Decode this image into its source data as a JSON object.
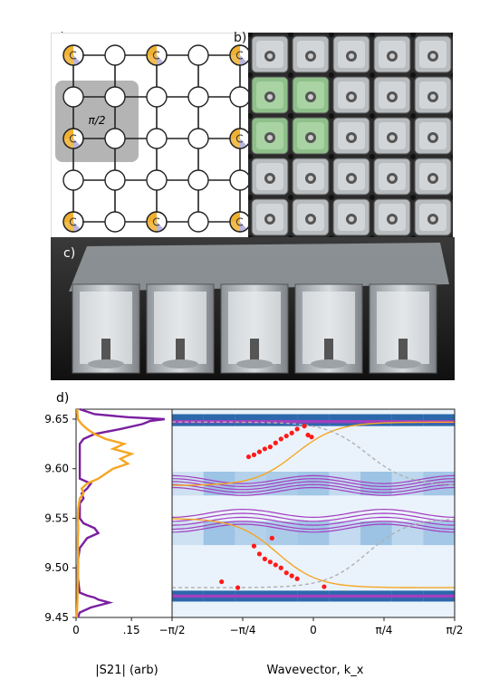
{
  "panels": {
    "a_label": "a)",
    "b_label": "b)",
    "c_label": "c)",
    "d_label": "d)"
  },
  "lattice": {
    "gauge_label": "π/2",
    "rows": 5,
    "cols": 5,
    "shaded_block": {
      "row_start": 1,
      "row_end": 2,
      "col_start": 0,
      "col_end": 1
    },
    "source_sites": [
      [
        0,
        0
      ],
      [
        0,
        2
      ],
      [
        0,
        4
      ],
      [
        2,
        0
      ],
      [
        2,
        4
      ],
      [
        4,
        0
      ],
      [
        4,
        2
      ],
      [
        4,
        4
      ]
    ],
    "colors": {
      "gold": "#f0b030",
      "lavender": "#b9b6e0",
      "shade": "#9b9b9b"
    }
  },
  "chart_data": [
    {
      "type": "line",
      "name": "transmission",
      "xlabel": "|S21| (arb)",
      "x_ticks": [
        "0",
        ".15"
      ],
      "ylim": [
        9.45,
        9.66
      ],
      "y_ticks": [
        "9.45",
        "9.50",
        "9.55",
        "9.60",
        "9.65"
      ],
      "series": [
        {
          "color": "#7a1fa0",
          "y": [
            9.45,
            9.455,
            9.46,
            9.465,
            9.468,
            9.47,
            9.472,
            9.475,
            9.48,
            9.49,
            9.5,
            9.51,
            9.52,
            9.53,
            9.535,
            9.54,
            9.545,
            9.55,
            9.56,
            9.565,
            9.57,
            9.575,
            9.58,
            9.585,
            9.59,
            9.6,
            9.61,
            9.62,
            9.625,
            9.63,
            9.635,
            9.64,
            9.645,
            9.648,
            9.65,
            9.652,
            9.655,
            9.66
          ],
          "x": [
            0.005,
            0.01,
            0.04,
            0.09,
            0.06,
            0.05,
            0.03,
            0.01,
            0.008,
            0.005,
            0.005,
            0.006,
            0.01,
            0.03,
            0.06,
            0.05,
            0.02,
            0.01,
            0.01,
            0.01,
            0.02,
            0.015,
            0.03,
            0.04,
            0.01,
            0.01,
            0.01,
            0.01,
            0.01,
            0.02,
            0.05,
            0.12,
            0.18,
            0.2,
            0.24,
            0.14,
            0.05,
            0.01
          ]
        },
        {
          "color": "#f5a623",
          "y": [
            9.45,
            9.46,
            9.47,
            9.48,
            9.49,
            9.5,
            9.51,
            9.52,
            9.53,
            9.54,
            9.55,
            9.56,
            9.57,
            9.575,
            9.58,
            9.585,
            9.59,
            9.595,
            9.6,
            9.605,
            9.61,
            9.615,
            9.62,
            9.625,
            9.63,
            9.635,
            9.64,
            9.645,
            9.65,
            9.66
          ],
          "x": [
            0.002,
            0.003,
            0.004,
            0.004,
            0.005,
            0.005,
            0.006,
            0.005,
            0.005,
            0.006,
            0.005,
            0.006,
            0.01,
            0.02,
            0.015,
            0.03,
            0.06,
            0.08,
            0.1,
            0.14,
            0.12,
            0.15,
            0.1,
            0.13,
            0.08,
            0.05,
            0.03,
            0.015,
            0.005,
            0.003
          ]
        }
      ]
    },
    {
      "type": "heatmap",
      "name": "band-structure",
      "xlabel": "Wavevector, k_x",
      "x_ticks": [
        "−π/2",
        "−π/4",
        "0",
        "π/4",
        "π/2"
      ],
      "xlim": [
        -1.5708,
        1.5708
      ],
      "ylim": [
        9.45,
        9.66
      ],
      "colors": {
        "bands": "#a43fc0",
        "edge": "#f5a623",
        "dashed": "#b0b0b0",
        "measured": "#ff1a1a",
        "heat_low": "#eaf3fb",
        "heat_high": "#0b4f9c"
      },
      "measured_points": [
        {
          "x": -0.72,
          "y": 9.612
        },
        {
          "x": -0.66,
          "y": 9.614
        },
        {
          "x": -0.6,
          "y": 9.617
        },
        {
          "x": -0.54,
          "y": 9.62
        },
        {
          "x": -0.48,
          "y": 9.622
        },
        {
          "x": -0.42,
          "y": 9.626
        },
        {
          "x": -0.36,
          "y": 9.63
        },
        {
          "x": -0.3,
          "y": 9.633
        },
        {
          "x": -0.24,
          "y": 9.636
        },
        {
          "x": -0.18,
          "y": 9.64
        },
        {
          "x": -0.1,
          "y": 9.643
        },
        {
          "x": -0.06,
          "y": 9.634
        },
        {
          "x": -0.02,
          "y": 9.632
        },
        {
          "x": -0.66,
          "y": 9.522
        },
        {
          "x": -0.6,
          "y": 9.514
        },
        {
          "x": -0.54,
          "y": 9.509
        },
        {
          "x": -0.48,
          "y": 9.506
        },
        {
          "x": -0.42,
          "y": 9.503
        },
        {
          "x": -0.36,
          "y": 9.5
        },
        {
          "x": -0.3,
          "y": 9.495
        },
        {
          "x": -0.24,
          "y": 9.492
        },
        {
          "x": -0.18,
          "y": 9.489
        },
        {
          "x": -0.46,
          "y": 9.53
        },
        {
          "x": -1.02,
          "y": 9.486
        },
        {
          "x": -0.84,
          "y": 9.48
        },
        {
          "x": 0.12,
          "y": 9.481
        }
      ]
    }
  ]
}
